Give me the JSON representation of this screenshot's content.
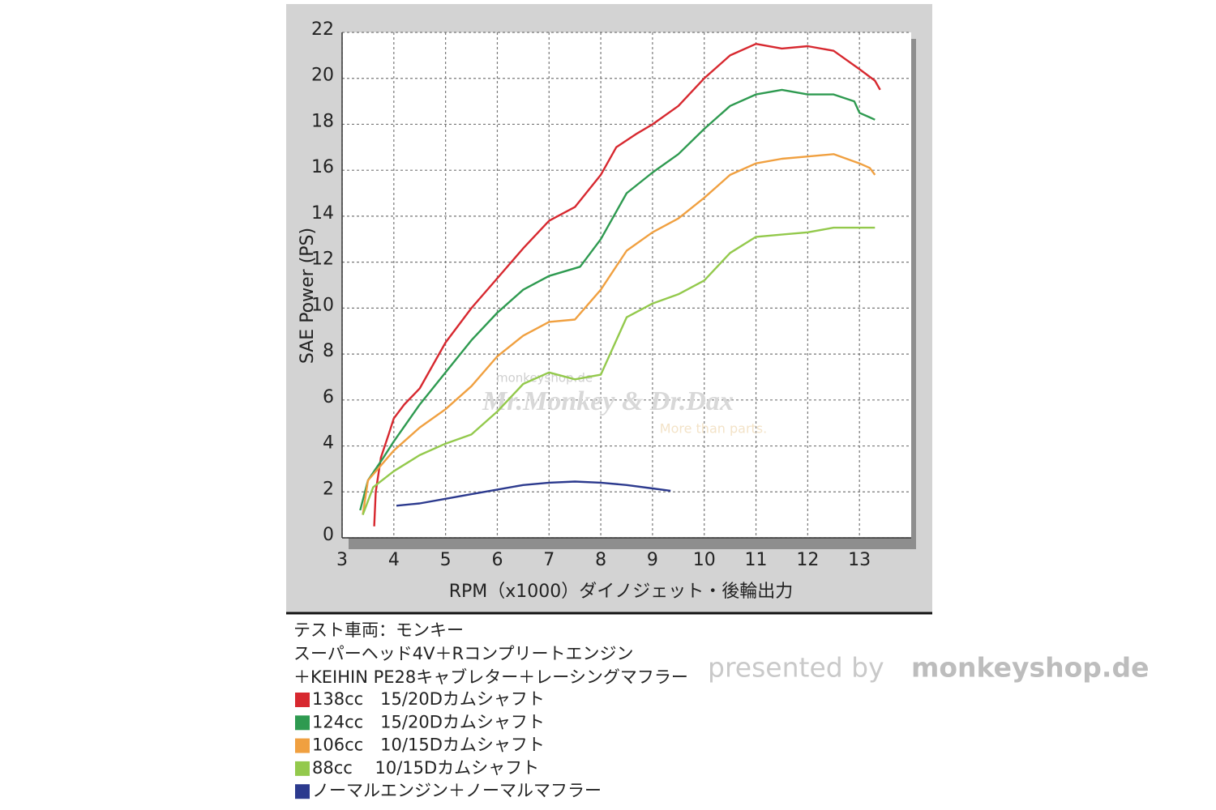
{
  "chart_data": {
    "type": "line",
    "xlabel": "RPM（x1000）ダイノジェット・後輪出力",
    "ylabel": "SAE Power (PS)",
    "xlim": [
      3,
      14
    ],
    "xticks": [
      3,
      4,
      5,
      6,
      7,
      8,
      9,
      10,
      11,
      12,
      13
    ],
    "ylim": [
      0,
      22
    ],
    "yticks": [
      0,
      2,
      4,
      6,
      8,
      10,
      12,
      14,
      16,
      18,
      20,
      22
    ],
    "grid": true,
    "notes": [
      "テスト車両：モンキー",
      "スーパーヘッド4V＋Rコンプリートエンジン",
      "＋KEIHIN PE28キャブレター＋レーシングマフラー"
    ],
    "watermarks": [
      "monkeyshop.de",
      "Mr.Monkey & Dr.Dax",
      "More than parts.",
      "presented by",
      "monkeyshop.de"
    ],
    "series": [
      {
        "name": "138cc　15/20Dカムシャフト",
        "color": "#d7282f",
        "x": [
          3.62,
          3.65,
          3.75,
          3.9,
          4,
          4.2,
          4.5,
          5,
          5.5,
          6,
          6.5,
          7,
          7.5,
          8,
          8.3,
          8.7,
          9,
          9.5,
          10,
          10.5,
          11,
          11.5,
          12,
          12.5,
          13,
          13.3,
          13.4
        ],
        "values": [
          0.5,
          2,
          3.5,
          4.5,
          5.2,
          5.8,
          6.5,
          8.5,
          10,
          11.3,
          12.6,
          13.8,
          14.4,
          15.8,
          17,
          17.6,
          18,
          18.8,
          20,
          21,
          21.5,
          21.3,
          21.4,
          21.2,
          20.4,
          19.9,
          19.5
        ]
      },
      {
        "name": "124cc　15/20Dカムシャフト",
        "color": "#2e9a50",
        "x": [
          3.35,
          3.5,
          3.8,
          4,
          4.5,
          5,
          5.5,
          6,
          6.5,
          7,
          7.6,
          8,
          8.5,
          9,
          9.5,
          10,
          10.5,
          11,
          11.5,
          12,
          12.5,
          12.9,
          13,
          13.2,
          13.3
        ],
        "values": [
          1.2,
          2.5,
          3.5,
          4.2,
          5.8,
          7.2,
          8.6,
          9.8,
          10.8,
          11.4,
          11.8,
          13,
          15,
          15.9,
          16.7,
          17.8,
          18.8,
          19.3,
          19.5,
          19.3,
          19.3,
          19,
          18.5,
          18.3,
          18.2
        ]
      },
      {
        "name": "106cc　10/15Dカムシャフト",
        "color": "#f0a040",
        "x": [
          3.4,
          3.5,
          4,
          4.5,
          5,
          5.5,
          6,
          6.5,
          7,
          7.5,
          8,
          8.5,
          9,
          9.5,
          10,
          10.5,
          11,
          11.5,
          12,
          12.5,
          13,
          13.2,
          13.3
        ],
        "values": [
          1,
          2.5,
          3.8,
          4.8,
          5.6,
          6.6,
          7.9,
          8.8,
          9.4,
          9.5,
          10.8,
          12.5,
          13.3,
          13.9,
          14.8,
          15.8,
          16.3,
          16.5,
          16.6,
          16.7,
          16.3,
          16.1,
          15.8
        ]
      },
      {
        "name": "88cc　 10/15Dカムシャフト",
        "color": "#93c94c",
        "x": [
          3.4,
          3.6,
          4,
          4.5,
          5,
          5.5,
          6,
          6.5,
          7,
          7.5,
          8,
          8.5,
          9,
          9.5,
          10,
          10.5,
          11,
          11.5,
          12,
          12.5,
          13,
          13.3
        ],
        "values": [
          1,
          2.2,
          2.9,
          3.6,
          4.1,
          4.5,
          5.5,
          6.7,
          7.2,
          6.9,
          7.1,
          9.6,
          10.2,
          10.6,
          11.2,
          12.4,
          13.1,
          13.2,
          13.3,
          13.5,
          13.5,
          13.5
        ]
      },
      {
        "name": "ノーマルエンジン＋ノーマルマフラー",
        "color": "#2c3a8e",
        "x": [
          4.05,
          4.5,
          5,
          5.5,
          6,
          6.5,
          7,
          7.5,
          8,
          8.5,
          9,
          9.35
        ],
        "values": [
          1.4,
          1.5,
          1.7,
          1.9,
          2.1,
          2.3,
          2.4,
          2.45,
          2.4,
          2.3,
          2.15,
          2.05
        ]
      }
    ]
  }
}
